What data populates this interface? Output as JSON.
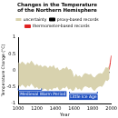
{
  "chart_data": {
    "type": "line",
    "title": "Changes in the Temperature of the Northern Hemisphere",
    "x_label": "Year",
    "y_label": "Temperature Change (°C)",
    "xlim": [
      1000,
      2000
    ],
    "xticks": [
      1000,
      1200,
      1400,
      1600,
      1800,
      2000
    ],
    "ylim": [
      -1,
      1
    ],
    "yticks": [
      -1,
      -0.5,
      0,
      0.5,
      1
    ],
    "grid": false,
    "legend": "top",
    "series": [
      {
        "name": "uncertainty",
        "type": "band",
        "color": "#d8d2ae",
        "x": [
          1000,
          1020,
          1040,
          1060,
          1080,
          1100,
          1120,
          1140,
          1160,
          1180,
          1200,
          1220,
          1240,
          1260,
          1280,
          1300,
          1320,
          1340,
          1360,
          1380,
          1400,
          1420,
          1440,
          1460,
          1480,
          1500,
          1520,
          1540,
          1560,
          1580,
          1600,
          1620,
          1640,
          1660,
          1680,
          1700,
          1720,
          1740,
          1760,
          1780,
          1800,
          1820,
          1840,
          1860,
          1880,
          1900,
          1920,
          1940,
          1960,
          1980
        ],
        "lower": [
          -0.45,
          -0.5,
          -0.43,
          -0.47,
          -0.53,
          -0.45,
          -0.49,
          -0.4,
          -0.47,
          -0.55,
          -0.5,
          -0.57,
          -0.53,
          -0.6,
          -0.55,
          -0.57,
          -0.63,
          -0.55,
          -0.6,
          -0.53,
          -0.55,
          -0.5,
          -0.6,
          -0.58,
          -0.52,
          -0.55,
          -0.48,
          -0.58,
          -0.55,
          -0.62,
          -0.6,
          -0.5,
          -0.58,
          -0.55,
          -0.62,
          -0.52,
          -0.48,
          -0.5,
          -0.53,
          -0.5,
          -0.58,
          -0.62,
          -0.55,
          -0.5,
          -0.48,
          -0.5,
          -0.42,
          -0.3,
          -0.32,
          -0.25
        ],
        "upper": [
          0.25,
          0.2,
          0.27,
          0.23,
          0.17,
          0.25,
          0.21,
          0.3,
          0.23,
          0.15,
          0.2,
          0.13,
          0.17,
          0.1,
          0.15,
          0.13,
          0.07,
          0.15,
          0.1,
          0.17,
          0.05,
          0.1,
          0.0,
          0.02,
          0.08,
          0.05,
          0.12,
          0.02,
          0.05,
          -0.02,
          -0.2,
          -0.1,
          -0.18,
          -0.15,
          -0.22,
          -0.12,
          -0.08,
          -0.1,
          -0.13,
          -0.1,
          -0.18,
          -0.22,
          -0.15,
          -0.1,
          -0.08,
          -0.1,
          -0.02,
          0.1,
          0.08,
          0.15
        ]
      },
      {
        "name": "proxy-based records",
        "color": "#000000",
        "x": [
          1000,
          1020,
          1040,
          1060,
          1080,
          1100,
          1120,
          1140,
          1160,
          1180,
          1200,
          1220,
          1240,
          1260,
          1280,
          1300,
          1320,
          1340,
          1360,
          1380,
          1400,
          1420,
          1440,
          1460,
          1480,
          1500,
          1520,
          1540,
          1560,
          1580,
          1600,
          1620,
          1640,
          1660,
          1680,
          1700,
          1720,
          1740,
          1760,
          1780,
          1800,
          1820,
          1840,
          1860,
          1880,
          1900,
          1920,
          1940,
          1960,
          1980
        ],
        "values": [
          -0.1,
          -0.15,
          -0.08,
          -0.12,
          -0.18,
          -0.1,
          -0.14,
          -0.05,
          -0.12,
          -0.2,
          -0.15,
          -0.22,
          -0.18,
          -0.25,
          -0.2,
          -0.22,
          -0.28,
          -0.2,
          -0.25,
          -0.18,
          -0.25,
          -0.2,
          -0.3,
          -0.28,
          -0.22,
          -0.25,
          -0.18,
          -0.28,
          -0.25,
          -0.32,
          -0.4,
          -0.3,
          -0.38,
          -0.35,
          -0.42,
          -0.32,
          -0.28,
          -0.3,
          -0.33,
          -0.3,
          -0.38,
          -0.42,
          -0.35,
          -0.3,
          -0.28,
          -0.3,
          -0.22,
          -0.1,
          -0.12,
          -0.05
        ]
      },
      {
        "name": "thermometer-based records",
        "color": "#e02020",
        "x": [
          1860,
          1870,
          1880,
          1890,
          1900,
          1910,
          1920,
          1930,
          1940,
          1950,
          1960,
          1970,
          1980,
          1990,
          2000
        ],
        "values": [
          -0.35,
          -0.3,
          -0.28,
          -0.35,
          -0.3,
          -0.32,
          -0.2,
          -0.05,
          0.0,
          -0.08,
          -0.05,
          0.0,
          0.08,
          0.25,
          0.45
        ]
      }
    ],
    "annotations": [
      {
        "text": "Medieval Warm Period",
        "x": [
          1000,
          1250
        ],
        "y": -0.6,
        "color": "#2050c0"
      },
      {
        "text": "Little Ice Age",
        "x": [
          1550,
          1850
        ],
        "y": -0.7,
        "color": "#2050c0"
      }
    ]
  }
}
